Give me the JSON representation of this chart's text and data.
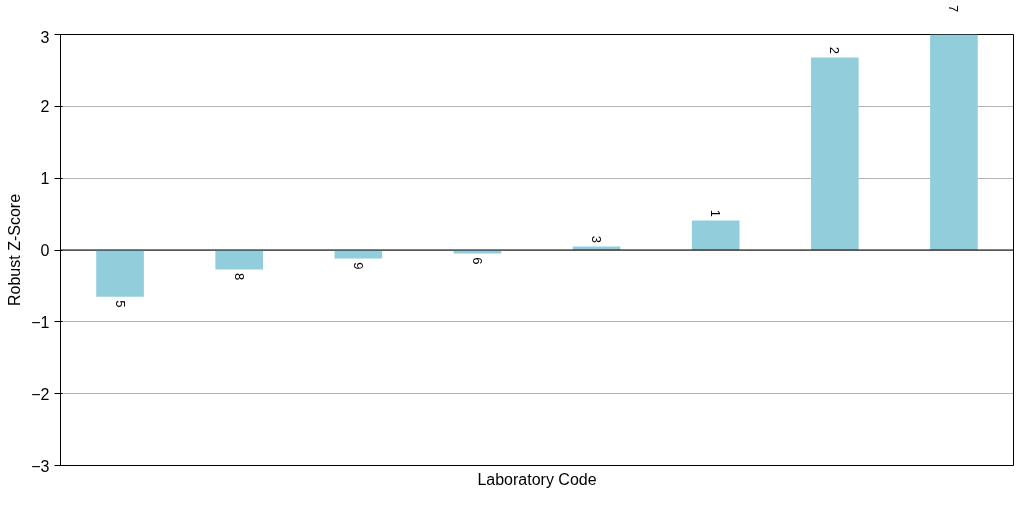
{
  "chart_data": {
    "type": "bar",
    "xlabel": "Laboratory Code",
    "ylabel": "Robust Z-Score",
    "categories": [
      "5",
      "8",
      "9",
      "6",
      "3",
      "1",
      "2",
      "7"
    ],
    "values": [
      -0.65,
      -0.27,
      -0.12,
      -0.05,
      0.05,
      0.41,
      2.68,
      3.0
    ],
    "color": "#92cddc",
    "ylim": [
      -3,
      3
    ],
    "yticks": [
      -3,
      -2,
      -1,
      0,
      1,
      2,
      3
    ],
    "grid": "y"
  }
}
